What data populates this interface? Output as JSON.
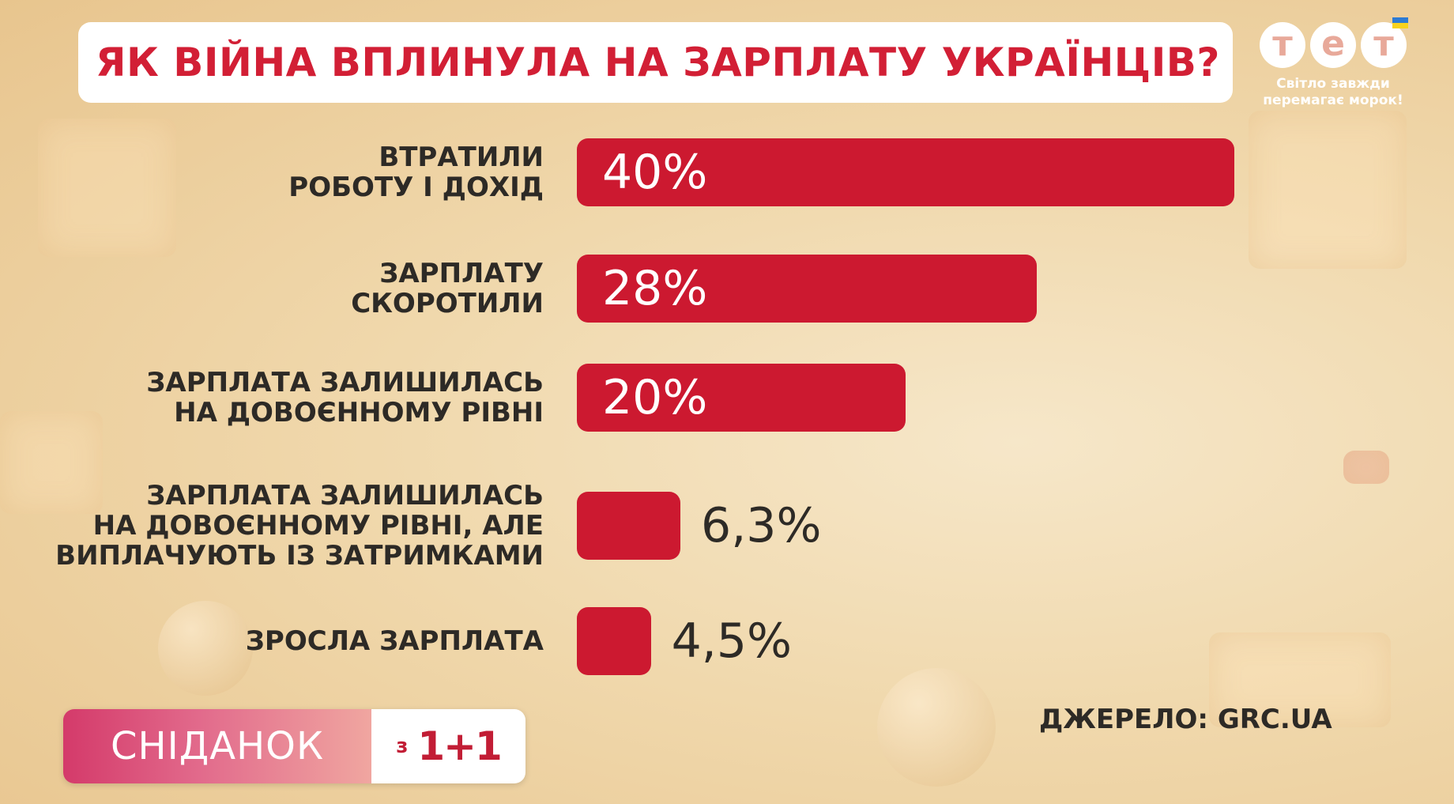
{
  "title": "ЯК ВІЙНА ВПЛИНУЛА НА ЗАРПЛАТУ УКРАЇНЦІВ?",
  "logo": {
    "letters": [
      "т",
      "е",
      "т"
    ],
    "slogan_line1": "Світло завжди",
    "slogan_line2": "перемагає морок!",
    "flag_colors": [
      "#2d7bd4",
      "#f7d21e"
    ]
  },
  "chart_data": {
    "type": "bar",
    "orientation": "horizontal",
    "categories": [
      "ВТРАТИЛИ\nРОБОТУ І ДОХІД",
      "ЗАРПЛАТУ\nСКОРОТИЛИ",
      "ЗАРПЛАТА ЗАЛИШИЛАСЬ\nНА ДОВОЄННОМУ РІВНІ",
      "ЗАРПЛАТА ЗАЛИШИЛАСЬ\nНА ДОВОЄННОМУ РІВНІ, АЛЕ\nВИПЛАЧУЮТЬ ІЗ ЗАТРИМКАМИ",
      "ЗРОСЛА ЗАРПЛАТА"
    ],
    "values": [
      40,
      28,
      20,
      6.3,
      4.5
    ],
    "value_labels": [
      "40%",
      "28%",
      "20%",
      "6,3%",
      "4,5%"
    ],
    "title": "ЯК ВІЙНА ВПЛИНУЛА НА ЗАРПЛАТУ УКРАЇНЦІВ?",
    "xlabel": "",
    "ylabel": "",
    "xlim": [
      0,
      40
    ],
    "grid": false,
    "bar_color": "#cc1930"
  },
  "brand": {
    "show_name": "СНІДАНОК",
    "preposition": "з",
    "channel": "1+1"
  },
  "source": "ДЖЕРЕЛО: GRC.UA"
}
